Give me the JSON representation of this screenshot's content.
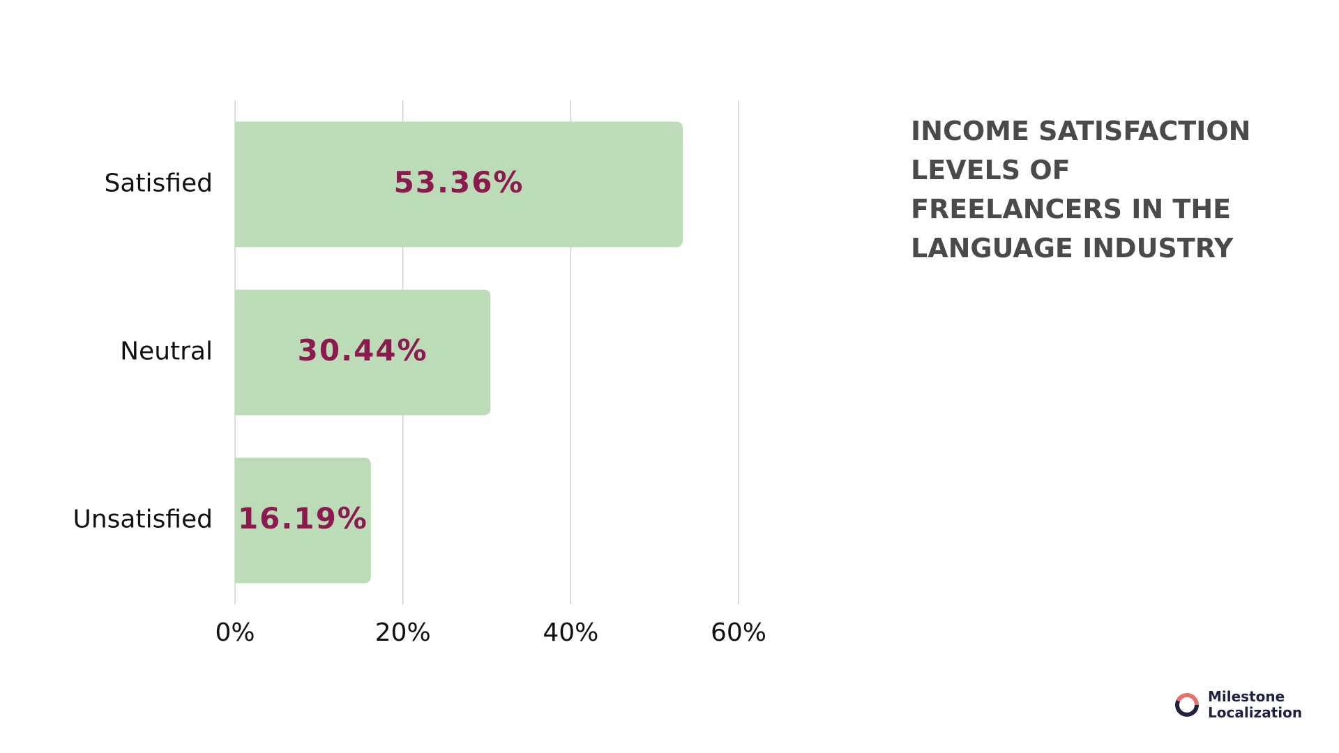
{
  "chart_data": {
    "type": "hbar",
    "title": "INCOME SATISFACTION LEVELS OF FREELANCERS IN THE LANGUAGE INDUSTRY",
    "categories": [
      "Satisfied",
      "Neutral",
      "Unsatisfied"
    ],
    "values": [
      53.36,
      30.44,
      16.19
    ],
    "value_labels": [
      "53.36%",
      "30.44%",
      "16.19%"
    ],
    "color": "#bbdcb7",
    "xlim": [
      0,
      60
    ],
    "xticks": [
      {
        "value": 0,
        "label": "0%"
      },
      {
        "value": 20,
        "label": "20%"
      },
      {
        "value": 40,
        "label": "40%"
      },
      {
        "value": 60,
        "label": "60%"
      }
    ],
    "grid": true
  },
  "brand": [
    "Milestone",
    "Localization"
  ]
}
